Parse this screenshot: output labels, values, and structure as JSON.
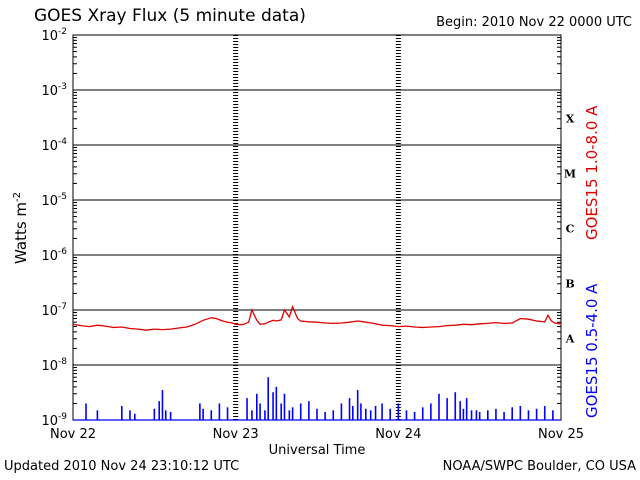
{
  "header": {
    "title": "GOES Xray Flux (5 minute data)",
    "begin": "Begin:  2010 Nov 22 0000 UTC"
  },
  "footer": {
    "updated": "Updated 2010 Nov 24 23:10:12 UTC",
    "credit": "NOAA/SWPC Boulder, CO USA"
  },
  "chart_data": {
    "type": "line",
    "title": "GOES Xray Flux (5 minute data)",
    "xlabel": "Universal Time",
    "ylabel": "Watts m",
    "ylabel_superscript": "-2",
    "yscale": "log",
    "ylim_exponents": [
      -9,
      -2
    ],
    "xlim_days": [
      0,
      3
    ],
    "x_tick_labels": [
      "Nov 22",
      "Nov 23",
      "Nov 24",
      "Nov 25"
    ],
    "y_tick_exponents": [
      -9,
      -8,
      -7,
      -6,
      -5,
      -4,
      -3,
      -2
    ],
    "y_tick_base": "10",
    "flare_classes": [
      "A",
      "B",
      "C",
      "M",
      "X"
    ],
    "grid": true,
    "colors": {
      "long": "#e00000",
      "short": "#0000ff"
    },
    "series": [
      {
        "name": "GOES15 1.0-8.0 A",
        "day_offsets": [
          0,
          0.05,
          0.1,
          0.15,
          0.2,
          0.25,
          0.3,
          0.35,
          0.4,
          0.45,
          0.5,
          0.55,
          0.6,
          0.65,
          0.7,
          0.75,
          0.8,
          0.85,
          0.88,
          0.92,
          0.95,
          0.98,
          1.0,
          1.03,
          1.05,
          1.08,
          1.1,
          1.13,
          1.15,
          1.18,
          1.2,
          1.23,
          1.25,
          1.28,
          1.3,
          1.33,
          1.35,
          1.38,
          1.4,
          1.45,
          1.5,
          1.55,
          1.6,
          1.65,
          1.7,
          1.75,
          1.8,
          1.85,
          1.9,
          1.95,
          2.0,
          2.05,
          2.1,
          2.15,
          2.2,
          2.25,
          2.3,
          2.35,
          2.4,
          2.45,
          2.5,
          2.55,
          2.6,
          2.65,
          2.7,
          2.73,
          2.75,
          2.8,
          2.85,
          2.9,
          2.92,
          2.94,
          2.96,
          3.0
        ],
        "flux": [
          5.5e-08,
          5.2e-08,
          5e-08,
          5.3e-08,
          5.1e-08,
          4.8e-08,
          4.9e-08,
          4.6e-08,
          4.5e-08,
          4.3e-08,
          4.5e-08,
          4.4e-08,
          4.5e-08,
          4.7e-08,
          4.9e-08,
          5.5e-08,
          6.5e-08,
          7.2e-08,
          7e-08,
          6.3e-08,
          6e-08,
          5.8e-08,
          5.5e-08,
          5.4e-08,
          5.5e-08,
          6e-08,
          1e-07,
          6.5e-08,
          5.5e-08,
          5.6e-08,
          6e-08,
          6.5e-08,
          6.3e-08,
          6.6e-08,
          1e-07,
          7.5e-08,
          1.15e-07,
          7e-08,
          6.3e-08,
          6.1e-08,
          6e-08,
          5.8e-08,
          5.7e-08,
          5.8e-08,
          6e-08,
          6.3e-08,
          6e-08,
          5.7e-08,
          5.3e-08,
          5.2e-08,
          5e-08,
          5.1e-08,
          4.9e-08,
          4.8e-08,
          4.9e-08,
          5e-08,
          5.2e-08,
          5.3e-08,
          5.5e-08,
          5.4e-08,
          5.6e-08,
          5.7e-08,
          5.9e-08,
          5.7e-08,
          5.8e-08,
          6.5e-08,
          7e-08,
          6.8e-08,
          6.3e-08,
          6.1e-08,
          8e-08,
          6.4e-08,
          5.8e-08,
          5.6e-08
        ]
      },
      {
        "name": "GOES15 0.5-4.0 A",
        "day_offsets": [
          0.08,
          0.15,
          0.3,
          0.35,
          0.38,
          0.5,
          0.53,
          0.55,
          0.57,
          0.6,
          0.78,
          0.8,
          0.85,
          0.9,
          0.95,
          1.07,
          1.1,
          1.13,
          1.15,
          1.18,
          1.2,
          1.23,
          1.25,
          1.28,
          1.3,
          1.33,
          1.35,
          1.4,
          1.45,
          1.5,
          1.55,
          1.6,
          1.65,
          1.7,
          1.72,
          1.75,
          1.77,
          1.8,
          1.83,
          1.86,
          1.9,
          1.95,
          2.0,
          2.05,
          2.1,
          2.15,
          2.2,
          2.25,
          2.3,
          2.35,
          2.38,
          2.4,
          2.42,
          2.45,
          2.48,
          2.5,
          2.55,
          2.6,
          2.65,
          2.7,
          2.75,
          2.8,
          2.85,
          2.9,
          2.95
        ],
        "flux": [
          2e-09,
          1.5e-09,
          1.8e-09,
          1.5e-09,
          1.3e-09,
          1.6e-09,
          2.2e-09,
          3.5e-09,
          1.5e-09,
          1.4e-09,
          2e-09,
          1.6e-09,
          1.5e-09,
          2e-09,
          1.7e-09,
          2.5e-09,
          1.5e-09,
          3e-09,
          2e-09,
          1.5e-09,
          6e-09,
          3.2e-09,
          4e-09,
          2e-09,
          3e-09,
          1.5e-09,
          1.7e-09,
          2e-09,
          2.2e-09,
          1.6e-09,
          1.4e-09,
          1.5e-09,
          2e-09,
          2.5e-09,
          1.8e-09,
          3.5e-09,
          2e-09,
          1.6e-09,
          1.5e-09,
          1.8e-09,
          2e-09,
          1.6e-09,
          2e-09,
          1.5e-09,
          1.4e-09,
          1.7e-09,
          2e-09,
          3e-09,
          2.5e-09,
          3.2e-09,
          2.2e-09,
          1.6e-09,
          2.5e-09,
          1.5e-09,
          1.5e-09,
          1.4e-09,
          1.5e-09,
          1.6e-09,
          1.4e-09,
          1.7e-09,
          1.8e-09,
          1.5e-09,
          1.6e-09,
          1.8e-09,
          1.5e-09
        ]
      }
    ]
  }
}
